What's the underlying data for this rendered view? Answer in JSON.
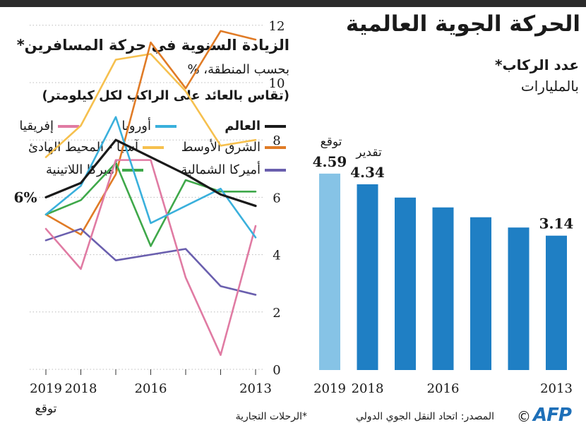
{
  "header": {
    "title": "الحركة الجوية العالمية"
  },
  "right_panel": {
    "subtitle": "عدد الركاب*",
    "unit": "بالمليارات"
  },
  "left_panel": {
    "title": "الزيادة السنوية في حركة المسافرين*",
    "subtitle": "بحسب المنطقة، %",
    "note": "(تقاس بالعائد على الراكب لكل كيلومتر)"
  },
  "footer": {
    "source": "المصدر: اتحاد النقل الجوي الدولي",
    "note": "*الرحلات التجارية",
    "copyright": "©",
    "logo": "AFP"
  },
  "colors": {
    "bar_dark": "#1f7fc4",
    "bar_light": "#86c3e6",
    "world": "#1a1a1a",
    "europe": "#3ab0dc",
    "africa": "#e07ba3",
    "middle_east": "#e07b26",
    "asia_pacific": "#f6c04e",
    "north_america": "#6a5fae",
    "latin_america": "#3fa84a"
  },
  "chart_data": [
    {
      "type": "bar",
      "categories": [
        "2013",
        "2014",
        "2015",
        "2016",
        "2017",
        "2018",
        "2019"
      ],
      "values": [
        3.14,
        3.33,
        3.57,
        3.8,
        4.03,
        4.34,
        4.59
      ],
      "x_tick_labels": [
        "2013",
        "",
        "",
        "2016",
        "",
        "2018",
        "2019"
      ],
      "value_labels": [
        "3.14",
        "",
        "",
        "",
        "",
        "4.34",
        "4.59"
      ],
      "annotations": [
        "",
        "",
        "",
        "",
        "",
        "تقدير",
        "توقع"
      ],
      "highlight": [
        false,
        false,
        false,
        false,
        false,
        false,
        true
      ]
    },
    {
      "type": "line",
      "x": [
        2013,
        2014,
        2015,
        2016,
        2017,
        2018,
        2019
      ],
      "x_tick_labels": [
        "2013",
        "",
        "",
        "2016",
        "",
        "2018",
        "2019"
      ],
      "x_extra_label": "توقع",
      "yticks": [
        0,
        2,
        4,
        6,
        8,
        10,
        12
      ],
      "ylim": [
        0,
        12
      ],
      "reference_label": "6%",
      "reference_value": 6,
      "series": [
        {
          "name": "العالم",
          "key": "world",
          "values": [
            5.7,
            6.1,
            6.8,
            7.4,
            8.0,
            6.5,
            6.0
          ]
        },
        {
          "name": "أوروبا",
          "key": "europe",
          "values": [
            4.6,
            6.3,
            5.7,
            5.1,
            8.8,
            6.4,
            5.4
          ]
        },
        {
          "name": "إفريقيا",
          "key": "africa",
          "values": [
            5.0,
            0.5,
            3.2,
            7.3,
            7.3,
            3.5,
            4.9
          ]
        },
        {
          "name": "الشرق الأوسط",
          "key": "middle_east",
          "values": [
            11.5,
            11.8,
            9.8,
            11.4,
            6.8,
            4.7,
            5.4
          ]
        },
        {
          "name": "آسيا - المحيط الهادئ",
          "key": "asia_pacific",
          "values": [
            8.0,
            7.8,
            9.7,
            11.0,
            10.8,
            8.5,
            7.4
          ]
        },
        {
          "name": "أميركا الشمالية",
          "key": "north_america",
          "values": [
            2.6,
            2.9,
            4.2,
            4.0,
            3.8,
            4.9,
            4.5
          ]
        },
        {
          "name": "أميركا اللاتينية",
          "key": "latin_america",
          "values": [
            6.2,
            6.2,
            6.6,
            4.3,
            7.2,
            5.9,
            5.4
          ]
        }
      ]
    }
  ]
}
